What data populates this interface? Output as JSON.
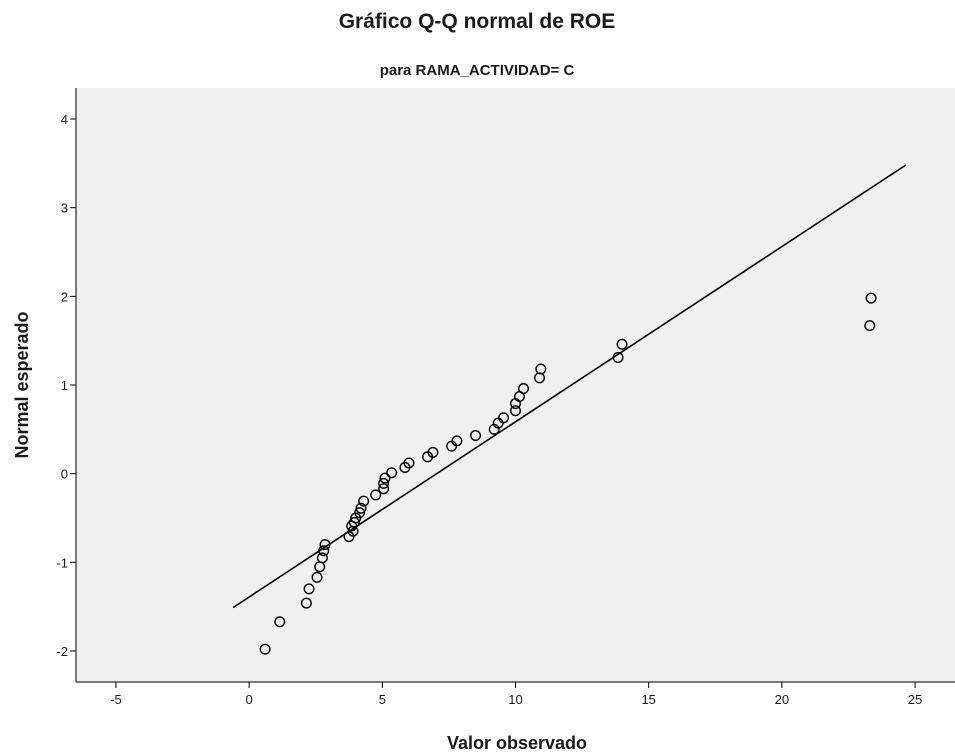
{
  "chart_data": {
    "type": "scatter",
    "title": "Gráfico Q-Q normal de ROE",
    "subtitle": "para RAMA_ACTIVIDAD= C",
    "xlabel": "Valor observado",
    "ylabel": "Normal esperado",
    "xlim": [
      -6.5,
      26.5
    ],
    "ylim": [
      -2.35,
      4.35
    ],
    "xticks": [
      -5,
      0,
      5,
      10,
      15,
      20,
      25
    ],
    "yticks": [
      -2,
      -1,
      0,
      1,
      2,
      3,
      4
    ],
    "grid": false,
    "plot_background": "#f0f0f0",
    "marker": "open-circle",
    "points": [
      [
        0.6,
        -1.98
      ],
      [
        1.15,
        -1.67
      ],
      [
        2.15,
        -1.46
      ],
      [
        2.25,
        -1.3
      ],
      [
        2.55,
        -1.17
      ],
      [
        2.65,
        -1.05
      ],
      [
        2.75,
        -0.95
      ],
      [
        2.8,
        -0.87
      ],
      [
        2.85,
        -0.8
      ],
      [
        3.75,
        -0.71
      ],
      [
        3.9,
        -0.65
      ],
      [
        3.85,
        -0.59
      ],
      [
        3.95,
        -0.55
      ],
      [
        4.0,
        -0.5
      ],
      [
        4.15,
        -0.44
      ],
      [
        4.2,
        -0.39
      ],
      [
        4.3,
        -0.31
      ],
      [
        4.75,
        -0.24
      ],
      [
        5.05,
        -0.17
      ],
      [
        5.05,
        -0.11
      ],
      [
        5.1,
        -0.05
      ],
      [
        5.35,
        0.01
      ],
      [
        5.85,
        0.07
      ],
      [
        6.0,
        0.12
      ],
      [
        6.7,
        0.19
      ],
      [
        6.9,
        0.24
      ],
      [
        7.6,
        0.31
      ],
      [
        7.8,
        0.37
      ],
      [
        8.5,
        0.43
      ],
      [
        9.2,
        0.5
      ],
      [
        9.35,
        0.57
      ],
      [
        9.55,
        0.63
      ],
      [
        10.0,
        0.71
      ],
      [
        10.0,
        0.79
      ],
      [
        10.15,
        0.87
      ],
      [
        10.3,
        0.96
      ],
      [
        10.9,
        1.08
      ],
      [
        10.95,
        1.18
      ],
      [
        13.85,
        1.31
      ],
      [
        14.0,
        1.46
      ],
      [
        23.3,
        1.67
      ],
      [
        23.35,
        1.98
      ]
    ],
    "reference_line": {
      "x": [
        -0.6,
        24.65
      ],
      "y": [
        -1.51,
        3.48
      ]
    }
  }
}
